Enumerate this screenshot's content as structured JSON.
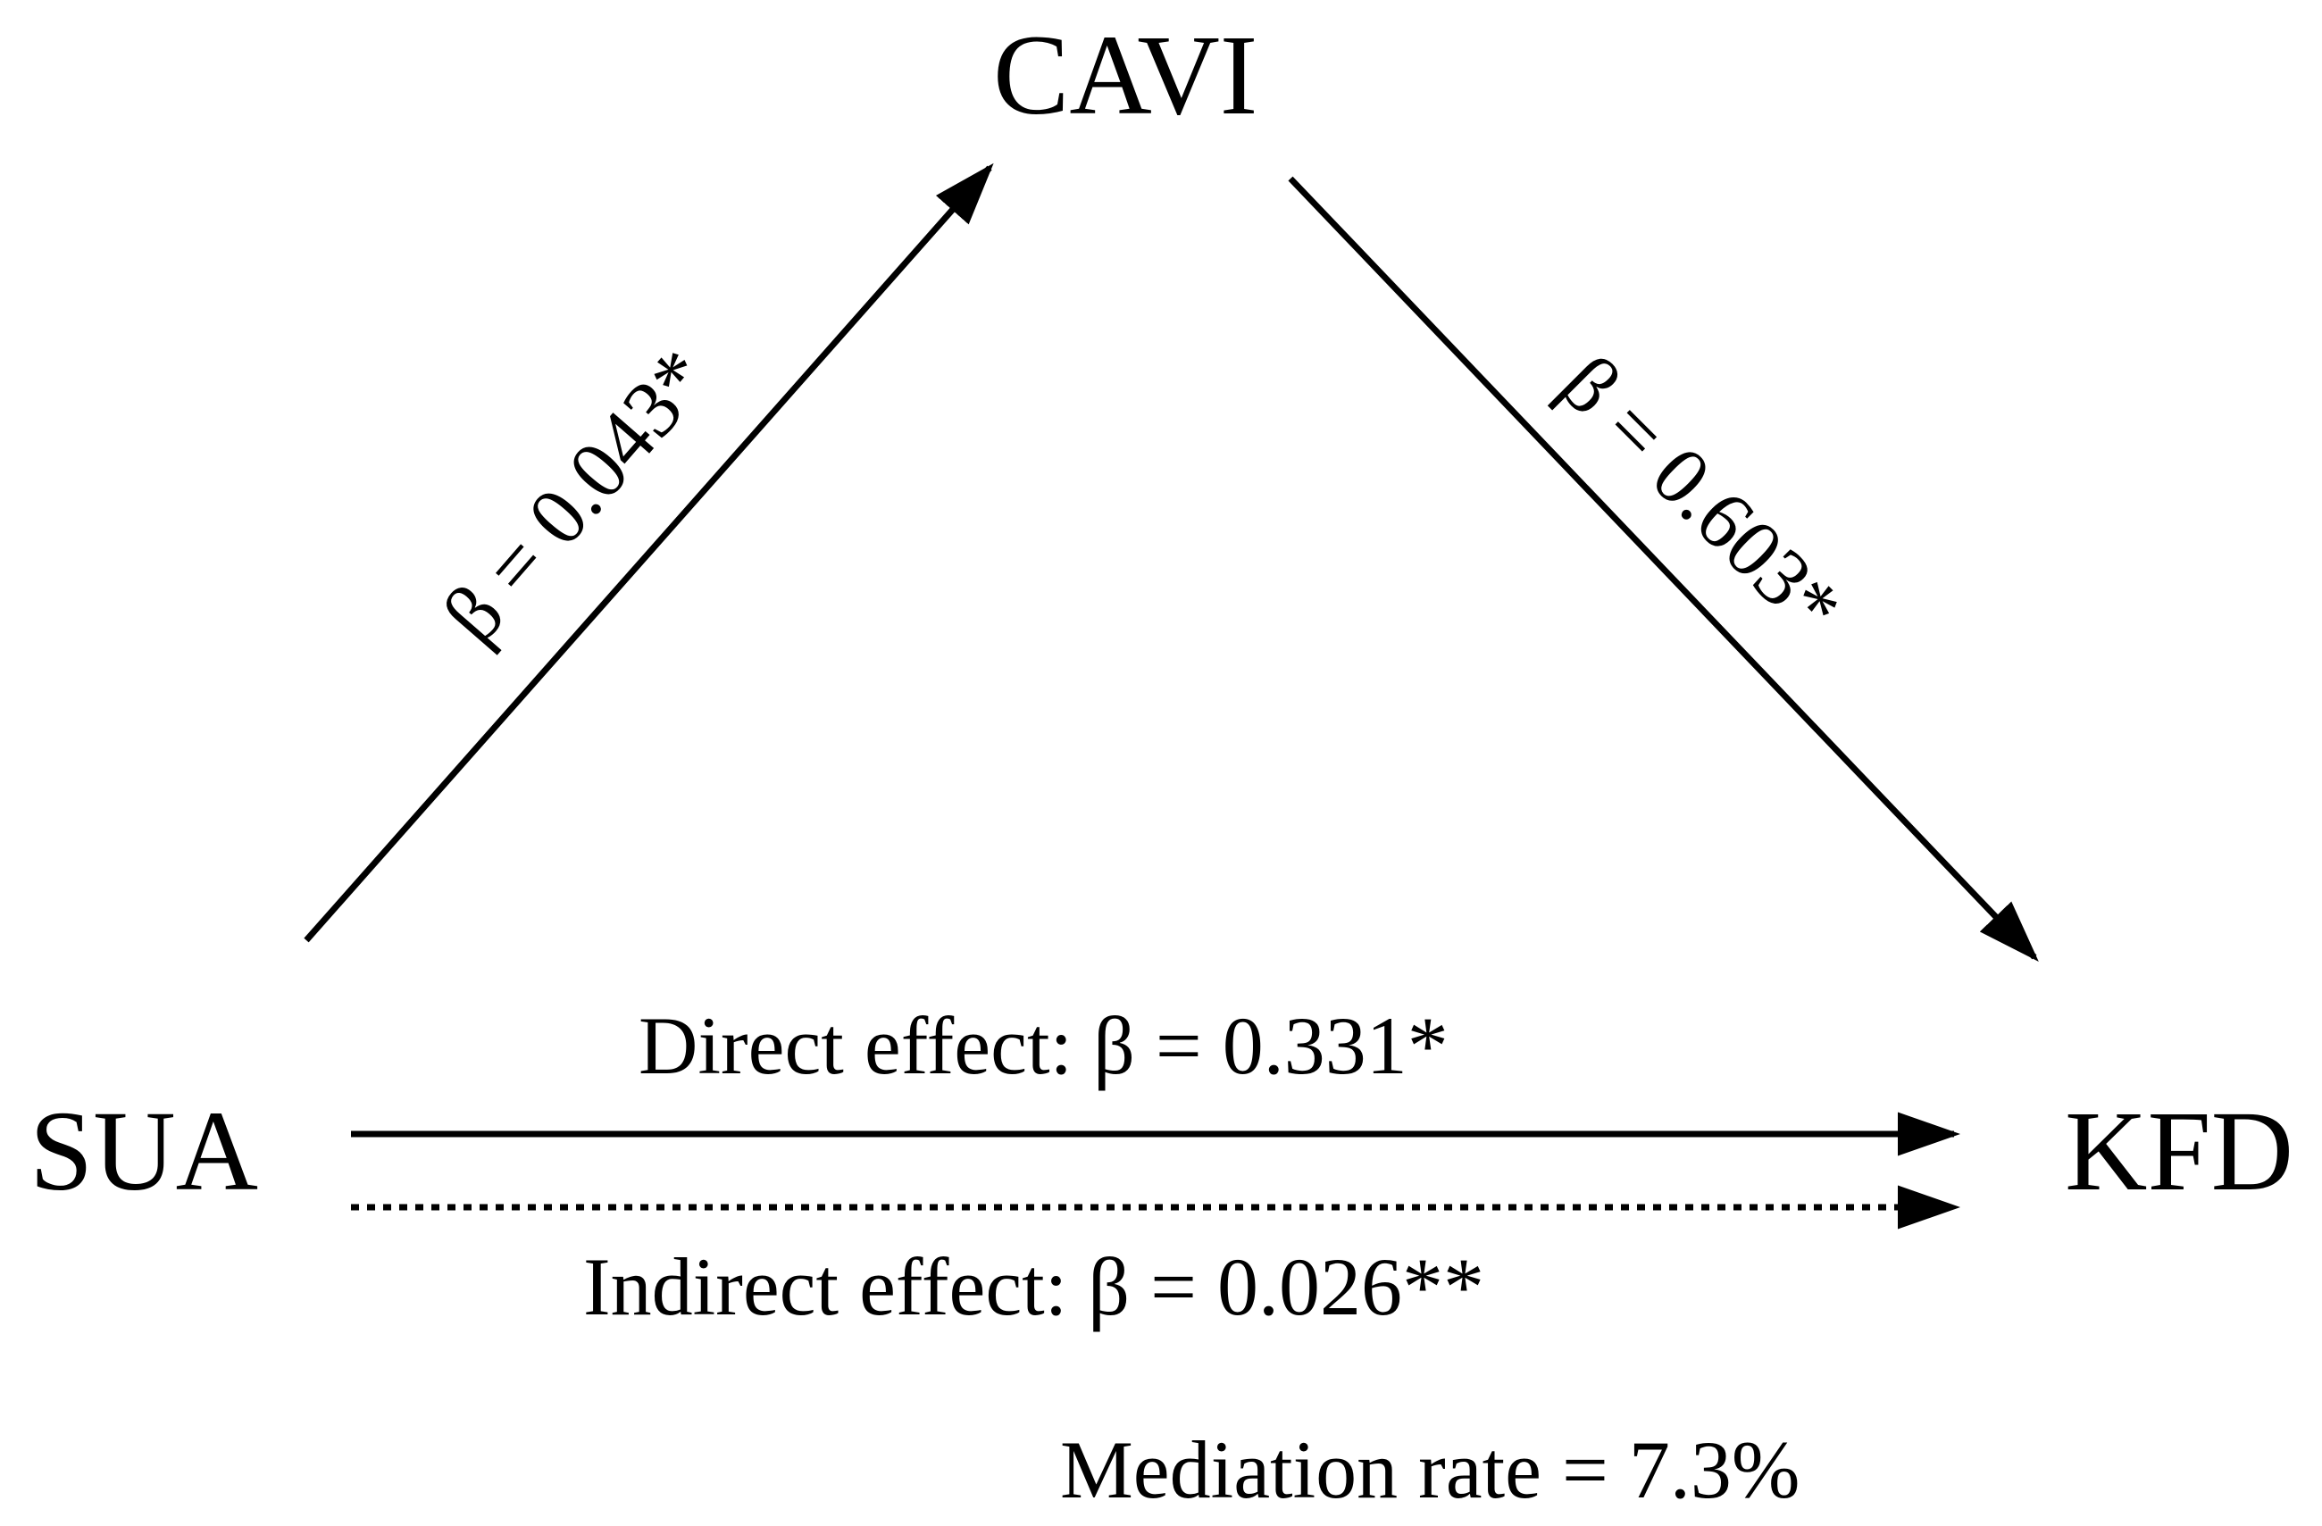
{
  "nodes": {
    "mediator": "CAVI",
    "exposure": "SUA",
    "outcome": "KFD"
  },
  "paths": {
    "a_path": "β = 0.043*",
    "b_path": "β = 0.603*",
    "direct_effect": "Direct effect: β = 0.331*",
    "indirect_effect": "Indirect effect: β = 0.026**"
  },
  "mediation_rate": "Mediation rate = 7.3%",
  "colors": {
    "stroke": "#000000",
    "background": "#ffffff"
  }
}
